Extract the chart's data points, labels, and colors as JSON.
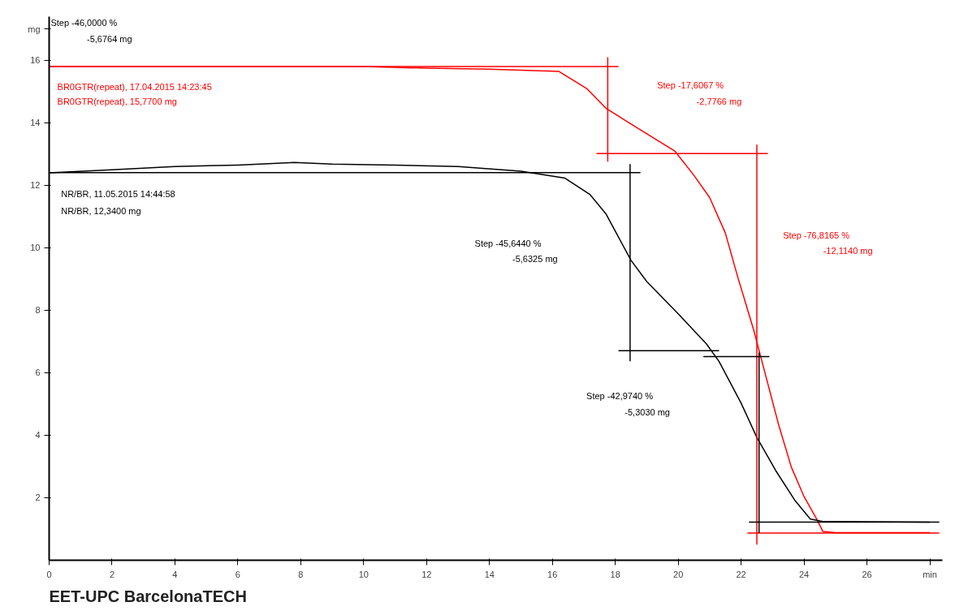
{
  "chart_data": {
    "type": "line",
    "xlim": [
      0,
      28.4
    ],
    "ylim": [
      0,
      17.4
    ],
    "xticks": [
      0,
      2,
      4,
      6,
      8,
      10,
      12,
      14,
      16,
      18,
      20,
      22,
      24,
      26,
      {
        "value": 28,
        "label": "min"
      }
    ],
    "yticks": [
      2,
      4,
      6,
      8,
      10,
      12,
      14,
      16,
      {
        "value": 17,
        "label": "mg"
      }
    ],
    "grid": false,
    "marker": "none",
    "line_style": "solid",
    "series": [
      {
        "color": "#ff0000",
        "x": [
          0,
          4,
          8,
          10,
          12,
          14,
          16.2,
          17.1,
          17.7,
          18.5,
          19.9,
          20.5,
          21.0,
          21.5,
          21.9,
          22.4,
          22.8,
          23.2,
          23.6,
          24.0,
          24.4,
          24.6,
          25.0,
          28.0
        ],
        "values": [
          15.8,
          15.8,
          15.8,
          15.8,
          15.75,
          15.72,
          15.65,
          15.09,
          14.47,
          13.96,
          13.09,
          12.32,
          11.61,
          10.47,
          9.04,
          7.37,
          5.84,
          4.31,
          2.97,
          2.04,
          1.32,
          0.92,
          0.88,
          0.88
        ]
      },
      {
        "color": "#000000",
        "x": [
          0,
          2,
          4,
          6,
          7.8,
          9,
          11,
          13,
          15,
          16.4,
          17.2,
          17.7,
          18.5,
          19.0,
          20.0,
          20.9,
          21.3,
          22.0,
          22.5,
          23.1,
          23.7,
          24.2,
          24.6,
          28.0
        ],
        "values": [
          12.4,
          12.5,
          12.6,
          12.65,
          12.73,
          12.68,
          12.65,
          12.6,
          12.45,
          12.23,
          11.7,
          11.09,
          9.6,
          8.92,
          7.89,
          6.92,
          6.36,
          5.03,
          3.93,
          2.87,
          1.93,
          1.32,
          1.24,
          1.22
        ]
      },
      {
        "color": "#ff0000",
        "x": [
          0,
          18.1
        ],
        "values": [
          15.8,
          15.8
        ]
      },
      {
        "color": "#ff0000",
        "x": [
          17.76,
          17.76
        ],
        "values": [
          16.1,
          12.76
        ]
      },
      {
        "color": "#ff0000",
        "x": [
          17.4,
          22.85
        ],
        "values": [
          13.02,
          13.02
        ]
      },
      {
        "color": "#ff0000",
        "x": [
          22.5,
          22.5
        ],
        "values": [
          13.3,
          0.5
        ]
      },
      {
        "color": "#ff0000",
        "x": [
          22.2,
          28.3
        ],
        "values": [
          0.87,
          0.87
        ]
      },
      {
        "color": "#000000",
        "x": [
          0,
          18.8
        ],
        "values": [
          12.41,
          12.41
        ]
      },
      {
        "color": "#000000",
        "x": [
          18.47,
          18.47
        ],
        "values": [
          12.68,
          6.37
        ]
      },
      {
        "color": "#000000",
        "x": [
          18.1,
          21.3
        ],
        "values": [
          6.71,
          6.71
        ]
      },
      {
        "color": "#000000",
        "x": [
          20.8,
          22.9
        ],
        "values": [
          6.52,
          6.52
        ]
      },
      {
        "color": "#000000",
        "x": [
          22.57,
          22.57
        ],
        "values": [
          6.65,
          0.87
        ]
      },
      {
        "color": "#000000",
        "x": [
          22.25,
          28.3
        ],
        "values": [
          1.22,
          1.22
        ]
      }
    ],
    "annotations": [
      "Step   -46,0000 %",
      "-5,6764 mg",
      "BR0GTR(repeat),  17.04.2015 14:23:45",
      "BR0GTR(repeat),  15,7700 mg",
      "NR/BR,  11.05.2015 14:44:58",
      "NR/BR,  12,3400 mg",
      "Step   -17,6067 %",
      "-2,7766 mg",
      "Step   -45,6440 %",
      "-5,6325 mg",
      "Step   -76,8165 %",
      "-12,1140 mg",
      "Step   -42,9740 %",
      "-5,3030 mg",
      "EET-UPC BarcelonaTECH"
    ]
  }
}
